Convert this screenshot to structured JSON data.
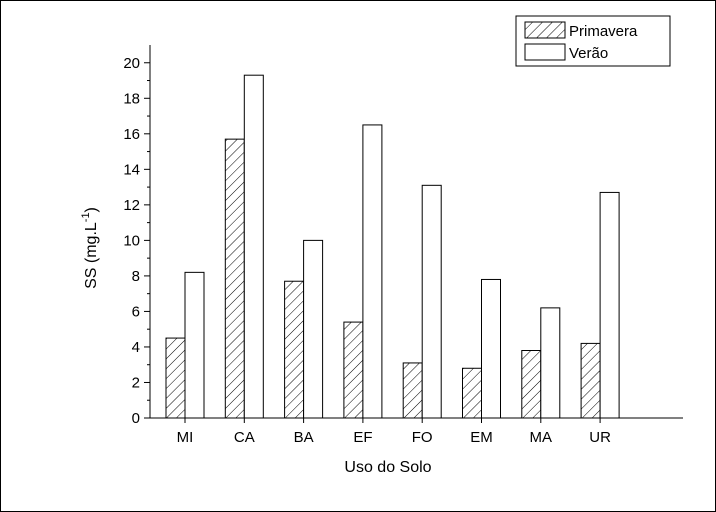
{
  "chart_data": {
    "type": "bar",
    "categories": [
      "MI",
      "CA",
      "BA",
      "EF",
      "FO",
      "EM",
      "MA",
      "UR"
    ],
    "series": [
      {
        "name": "Primavera",
        "pattern": "hatched",
        "values": [
          4.5,
          15.7,
          7.7,
          5.4,
          3.1,
          2.8,
          3.8,
          4.2
        ]
      },
      {
        "name": "Verão",
        "pattern": "solid-white",
        "values": [
          8.2,
          19.3,
          10.0,
          16.5,
          13.1,
          7.8,
          6.2,
          12.7
        ]
      }
    ],
    "xlabel": "Uso do Solo",
    "ylabel_main": "SS (mg.L",
    "ylabel_sup": "-1",
    "ylabel_close": ")",
    "ylim": [
      0,
      21
    ],
    "yticks": [
      "0",
      "2",
      "4",
      "6",
      "8",
      "10",
      "12",
      "14",
      "16",
      "18",
      "20"
    ],
    "legend_position": "top-right",
    "grid": false,
    "colors": {
      "stroke": "#000000",
      "fill": "#ffffff"
    }
  }
}
